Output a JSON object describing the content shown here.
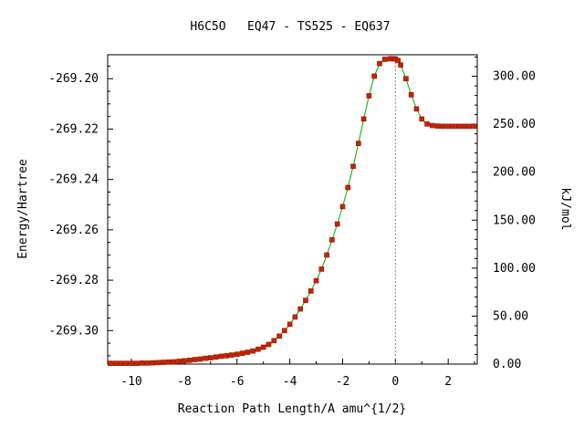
{
  "chart_data": {
    "type": "line",
    "title": "H6C5O   EQ47 - TS525 - EQ637",
    "xlabel": "Reaction Path Length/A amu^{1/2}",
    "ylabel": "Energy/Hartree",
    "y2label": "kJ/mol",
    "xlim": [
      -10.9,
      3.1
    ],
    "ylim": [
      -269.3133,
      -269.1905
    ],
    "y2lim": [
      0.0,
      322.4
    ],
    "xticks": [
      -10,
      -8,
      -6,
      -4,
      -2,
      0,
      2
    ],
    "xtick_labels": [
      "-10",
      "-8",
      "-6",
      "-4",
      "-2",
      "0",
      "2"
    ],
    "yticks": [
      -269.2,
      -269.22,
      -269.24,
      -269.26,
      -269.28,
      -269.3
    ],
    "ytick_labels": [
      "-269.20",
      "-269.22",
      "-269.24",
      "-269.26",
      "-269.28",
      "-269.30"
    ],
    "y2ticks": [
      0,
      50,
      100,
      150,
      200,
      250,
      300
    ],
    "y2tick_labels": [
      "0.00",
      "50.00",
      "100.00",
      "150.00",
      "200.00",
      "250.00",
      "300.00"
    ],
    "ts_marker_x": 0,
    "grid": false,
    "legend": "none",
    "colors": {
      "line": "#00aa00",
      "marker": "#cc2200",
      "marker_edge": "#881100",
      "ts_line": "#888888",
      "axis": "#000000"
    },
    "series": [
      {
        "x": [
          -10.8,
          -10.6,
          -10.4,
          -10.2,
          -10.0,
          -9.8,
          -9.6,
          -9.4,
          -9.2,
          -9.0,
          -8.8,
          -8.6,
          -8.4,
          -8.2,
          -8.0,
          -7.8,
          -7.6,
          -7.4,
          -7.2,
          -7.0,
          -6.8,
          -6.6,
          -6.4,
          -6.2,
          -6.0,
          -5.8,
          -5.6,
          -5.4,
          -5.2,
          -5.0,
          -4.8,
          -4.6,
          -4.4,
          -4.2,
          -4.0,
          -3.8,
          -3.6,
          -3.4,
          -3.2,
          -3.0,
          -2.8,
          -2.6,
          -2.4,
          -2.2,
          -2.0,
          -1.8,
          -1.6,
          -1.4,
          -1.2,
          -1.0,
          -0.8,
          -0.6,
          -0.4,
          -0.2,
          -0.1,
          0.0,
          0.1,
          0.2,
          0.4,
          0.6,
          0.8,
          1.0,
          1.2,
          1.4,
          1.6,
          1.8,
          2.0,
          2.2,
          2.4,
          2.6,
          2.8,
          3.0
        ],
        "y": [
          -269.313,
          -269.313,
          -269.313,
          -269.313,
          -269.313,
          -269.313,
          -269.3129,
          -269.3129,
          -269.3128,
          -269.3127,
          -269.3126,
          -269.3125,
          -269.3124,
          -269.3122,
          -269.312,
          -269.3118,
          -269.3115,
          -269.3113,
          -269.311,
          -269.3108,
          -269.3105,
          -269.3102,
          -269.31,
          -269.3097,
          -269.3094,
          -269.309,
          -269.3086,
          -269.3081,
          -269.3074,
          -269.3066,
          -269.3055,
          -269.304,
          -269.3022,
          -269.3,
          -269.2975,
          -269.2946,
          -269.2914,
          -269.288,
          -269.2843,
          -269.2802,
          -269.2756,
          -269.27,
          -269.264,
          -269.2577,
          -269.2508,
          -269.2432,
          -269.2348,
          -269.2257,
          -269.216,
          -269.2068,
          -269.199,
          -269.194,
          -269.1923,
          -269.1921,
          -269.1921,
          -269.1922,
          -269.1928,
          -269.1946,
          -269.2,
          -269.2064,
          -269.212,
          -269.216,
          -269.218,
          -269.2186,
          -269.2188,
          -269.2189,
          -269.2189,
          -269.2189,
          -269.2189,
          -269.2189,
          -269.2189,
          -269.2189
        ]
      }
    ]
  }
}
